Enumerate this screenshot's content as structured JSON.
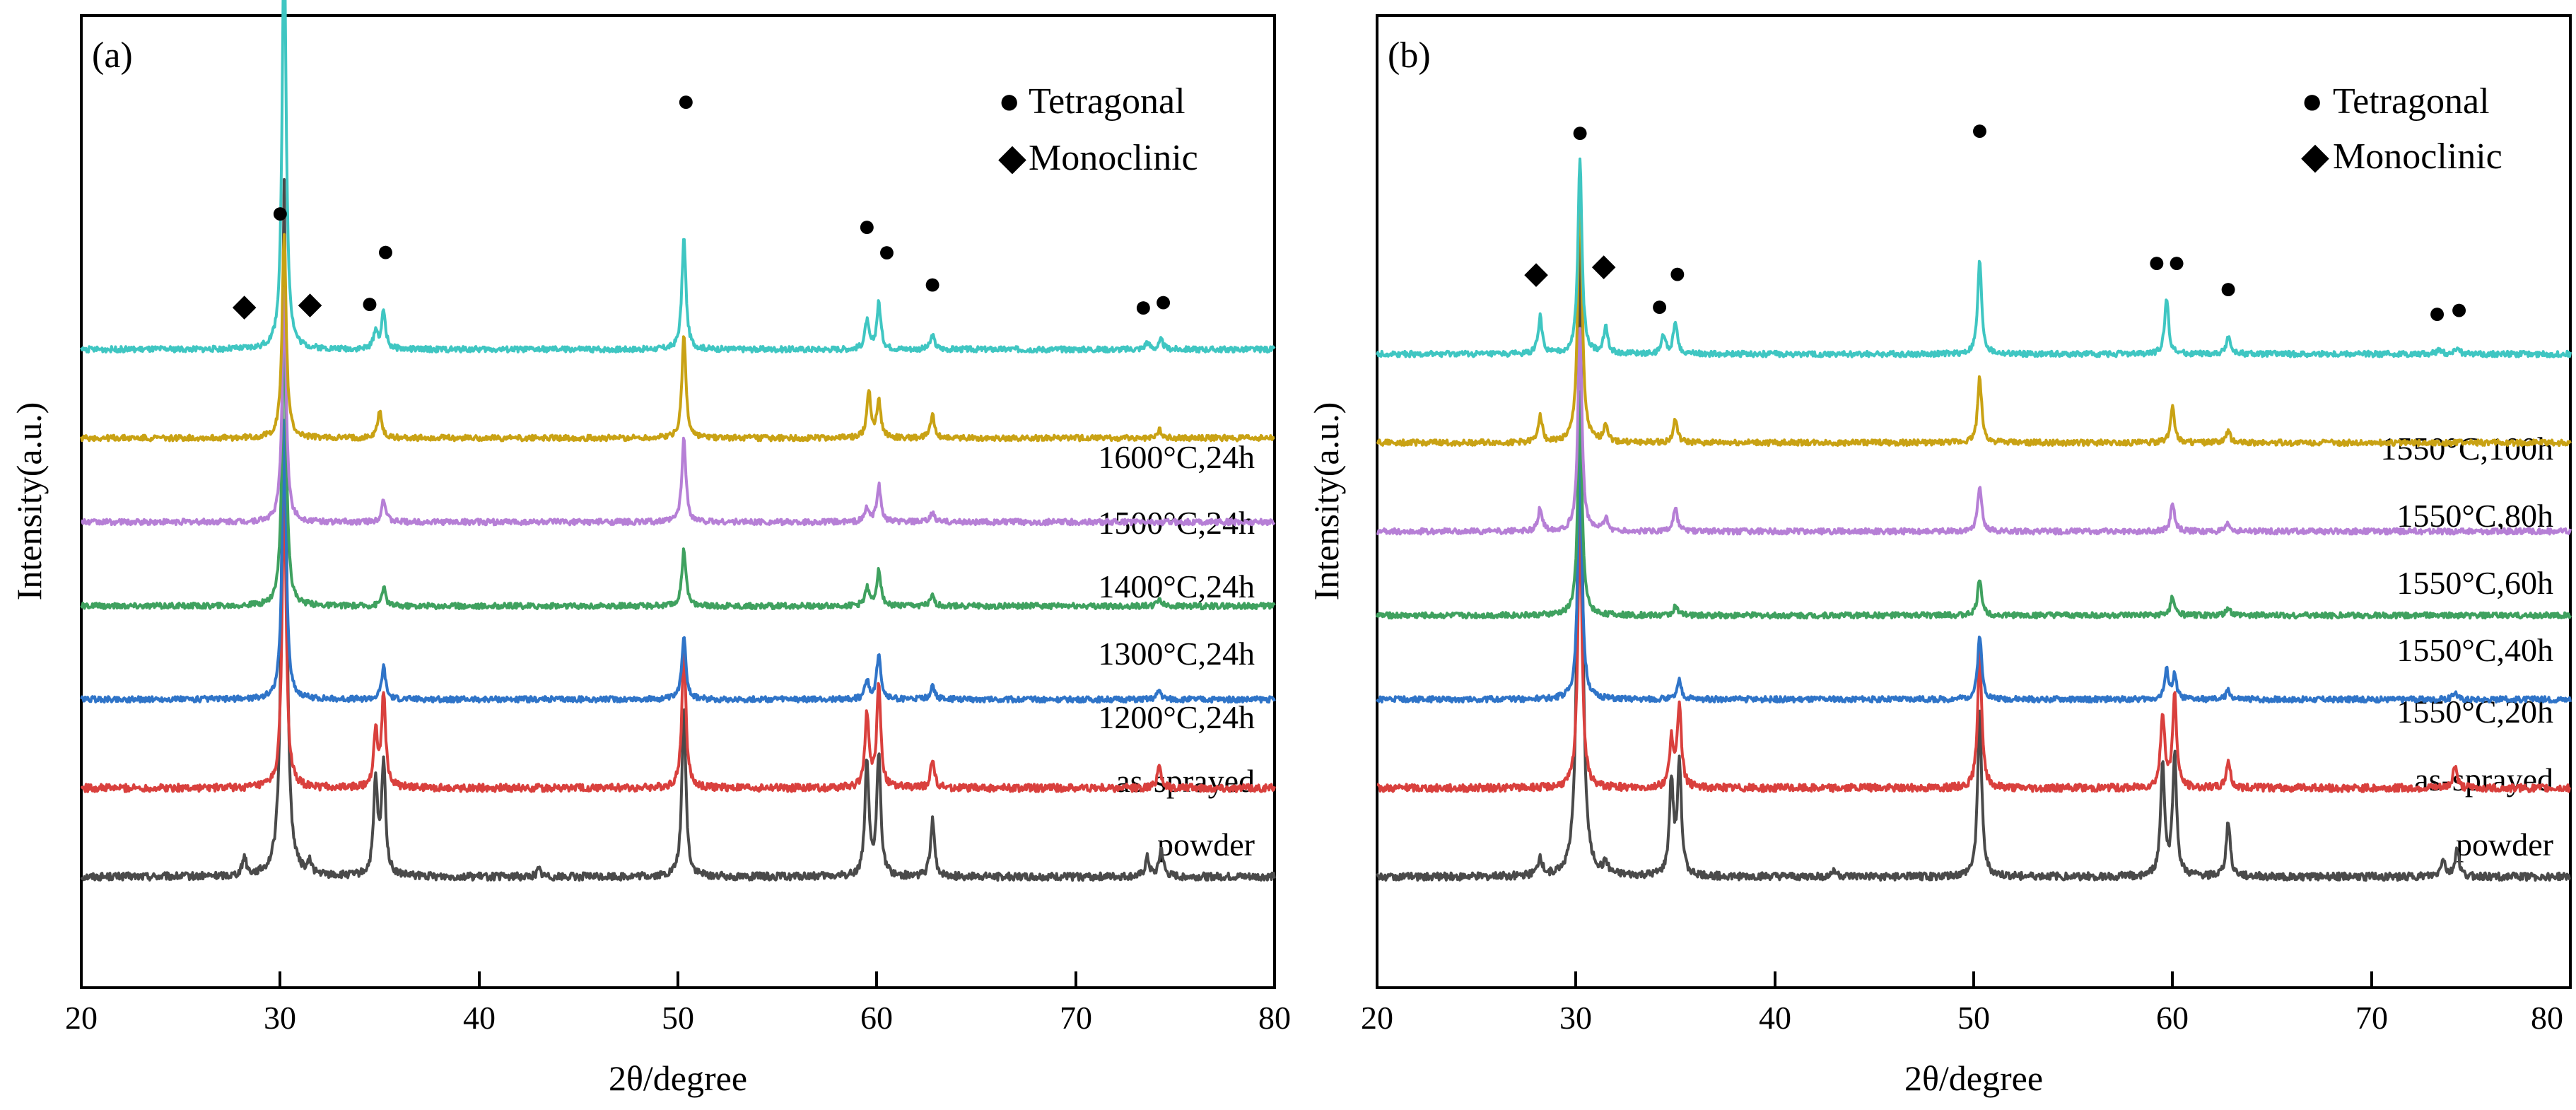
{
  "colors": {
    "powder": "#4a4a4a",
    "as_sprayed": "#d9403d",
    "t1": "#2f74c8",
    "t2": "#3fa15f",
    "t3": "#b67fd6",
    "t4": "#c9a214",
    "t5": "#3fc6c2"
  },
  "chart_data": [
    {
      "type": "line",
      "panel_label": "(a)",
      "xlabel": "2θ/degree",
      "ylabel": "Intensity(a.u.)",
      "xlim": [
        20,
        80
      ],
      "x_ticks": [
        20,
        30,
        40,
        50,
        60,
        70,
        80
      ],
      "x_tick_labels": [
        "20",
        "30",
        "40",
        "50",
        "60",
        "70",
        "80"
      ],
      "y_scale": "relative intensity, traces vertically offset",
      "legend": [
        {
          "marker": "●",
          "label": "Tetragonal"
        },
        {
          "marker": "◆",
          "label": "Monoclinic"
        }
      ],
      "series": [
        {
          "name": "powder",
          "color_key": "powder",
          "offset": 0.0,
          "noise": 0.004,
          "peaks": [
            [
              28.2,
              0.02
            ],
            [
              30.2,
              0.75
            ],
            [
              31.5,
              0.012
            ],
            [
              34.8,
              0.1
            ],
            [
              35.2,
              0.12
            ],
            [
              43.0,
              0.008
            ],
            [
              50.3,
              0.18
            ],
            [
              59.5,
              0.12
            ],
            [
              60.1,
              0.13
            ],
            [
              62.8,
              0.06
            ],
            [
              73.6,
              0.02
            ],
            [
              74.3,
              0.03
            ]
          ]
        },
        {
          "name": "as-sprayed",
          "color_key": "as_sprayed",
          "offset": 0.095,
          "noise": 0.004,
          "peaks": [
            [
              30.2,
              0.33
            ],
            [
              34.8,
              0.06
            ],
            [
              35.2,
              0.1
            ],
            [
              50.3,
              0.15
            ],
            [
              59.5,
              0.08
            ],
            [
              60.1,
              0.11
            ],
            [
              62.8,
              0.03
            ],
            [
              74.2,
              0.025
            ]
          ]
        },
        {
          "name": "1200°C,24h",
          "color_key": "t1",
          "offset": 0.19,
          "noise": 0.003,
          "peaks": [
            [
              30.2,
              0.3
            ],
            [
              35.2,
              0.035
            ],
            [
              50.3,
              0.07
            ],
            [
              59.5,
              0.02
            ],
            [
              60.1,
              0.05
            ],
            [
              62.8,
              0.015
            ],
            [
              74.2,
              0.01
            ]
          ]
        },
        {
          "name": "1300°C,24h",
          "color_key": "t2",
          "offset": 0.29,
          "noise": 0.003,
          "peaks": [
            [
              30.2,
              0.33
            ],
            [
              35.2,
              0.02
            ],
            [
              50.3,
              0.06
            ],
            [
              59.5,
              0.02
            ],
            [
              60.1,
              0.04
            ],
            [
              62.8,
              0.01
            ],
            [
              74.2,
              0.008
            ]
          ]
        },
        {
          "name": "1400°C,24h",
          "color_key": "t3",
          "offset": 0.38,
          "noise": 0.003,
          "peaks": [
            [
              30.2,
              0.25
            ],
            [
              35.2,
              0.025
            ],
            [
              50.3,
              0.09
            ],
            [
              59.5,
              0.015
            ],
            [
              60.1,
              0.04
            ],
            [
              62.8,
              0.01
            ]
          ]
        },
        {
          "name": "1500°C,24h",
          "color_key": "t4",
          "offset": 0.47,
          "noise": 0.003,
          "peaks": [
            [
              30.2,
              0.22
            ],
            [
              35.0,
              0.03
            ],
            [
              50.3,
              0.11
            ],
            [
              59.6,
              0.05
            ],
            [
              60.1,
              0.04
            ],
            [
              62.8,
              0.025
            ],
            [
              74.2,
              0.01
            ]
          ]
        },
        {
          "name": "1600°C,24h",
          "color_key": "t5",
          "offset": 0.565,
          "noise": 0.003,
          "peaks": [
            [
              30.2,
              0.45
            ],
            [
              34.8,
              0.02
            ],
            [
              35.2,
              0.04
            ],
            [
              50.3,
              0.12
            ],
            [
              59.5,
              0.03
            ],
            [
              60.1,
              0.05
            ],
            [
              62.8,
              0.015
            ],
            [
              73.6,
              0.008
            ],
            [
              74.3,
              0.01
            ]
          ]
        }
      ],
      "phase_markers": [
        {
          "symbol": "◆",
          "x": 28.2,
          "above": "1600°C,24h",
          "gap": 0.03
        },
        {
          "symbol": "◆",
          "x": 31.5,
          "above": "1600°C,24h",
          "gap": 0.03
        },
        {
          "symbol": "●",
          "x": 34.5,
          "above": "1600°C,24h",
          "gap": 0.03
        },
        {
          "symbol": "●",
          "x": 35.3,
          "above": "1600°C,24h",
          "gap": 0.065
        },
        {
          "symbol": "●",
          "x": 30.0,
          "above": "powder",
          "gap": 0.0
        },
        {
          "symbol": "●",
          "x": 50.4,
          "above": "1600°C,24h",
          "gap": 0.18
        },
        {
          "symbol": "●",
          "x": 59.5,
          "above": "1600°C,24h",
          "gap": 0.085
        },
        {
          "symbol": "●",
          "x": 60.5,
          "above": "1600°C,24h",
          "gap": 0.085
        },
        {
          "symbol": "●",
          "x": 62.8,
          "above": "1600°C,24h",
          "gap": 0.04
        },
        {
          "symbol": "●",
          "x": 73.4,
          "above": "1600°C,24h",
          "gap": 0.028
        },
        {
          "symbol": "●",
          "x": 74.4,
          "above": "1600°C,24h",
          "gap": 0.03
        }
      ]
    },
    {
      "type": "line",
      "panel_label": "(b)",
      "xlabel": "2θ/degree",
      "ylabel": "Intensity(a.u.)",
      "xlim": [
        20,
        80
      ],
      "x_ticks": [
        20,
        30,
        40,
        50,
        60,
        70,
        80
      ],
      "x_tick_labels": [
        "20",
        "30",
        "40",
        "50",
        "60",
        "70",
        "80"
      ],
      "y_scale": "relative intensity, traces vertically offset",
      "legend": [
        {
          "marker": "●",
          "label": "Tetragonal"
        },
        {
          "marker": "◆",
          "label": "Monoclinic"
        }
      ],
      "series": [
        {
          "name": "powder",
          "color_key": "powder",
          "offset": 0.0,
          "noise": 0.004,
          "peaks": [
            [
              28.2,
              0.02
            ],
            [
              30.2,
              0.75
            ],
            [
              31.5,
              0.012
            ],
            [
              34.8,
              0.1
            ],
            [
              35.2,
              0.12
            ],
            [
              43.0,
              0.008
            ],
            [
              50.3,
              0.18
            ],
            [
              59.5,
              0.12
            ],
            [
              60.1,
              0.13
            ],
            [
              62.8,
              0.06
            ],
            [
              73.6,
              0.02
            ],
            [
              74.3,
              0.03
            ]
          ]
        },
        {
          "name": "as-sprayed",
          "color_key": "as_sprayed",
          "offset": 0.095,
          "noise": 0.004,
          "peaks": [
            [
              30.2,
              0.3
            ],
            [
              34.8,
              0.05
            ],
            [
              35.2,
              0.09
            ],
            [
              50.3,
              0.15
            ],
            [
              59.5,
              0.08
            ],
            [
              60.1,
              0.1
            ],
            [
              62.8,
              0.03
            ],
            [
              74.2,
              0.025
            ]
          ]
        },
        {
          "name": "1550°C,20h",
          "color_key": "t1",
          "offset": 0.19,
          "noise": 0.003,
          "peaks": [
            [
              30.2,
              0.27
            ],
            [
              35.2,
              0.02
            ],
            [
              50.3,
              0.07
            ],
            [
              59.7,
              0.03
            ],
            [
              60.1,
              0.025
            ],
            [
              62.8,
              0.01
            ],
            [
              74.2,
              0.008
            ]
          ]
        },
        {
          "name": "1550°C,40h",
          "color_key": "t2",
          "offset": 0.28,
          "noise": 0.003,
          "peaks": [
            [
              30.2,
              0.24
            ],
            [
              35.0,
              0.01
            ],
            [
              50.3,
              0.04
            ],
            [
              60.0,
              0.02
            ],
            [
              62.8,
              0.008
            ]
          ]
        },
        {
          "name": "1550°C,60h",
          "color_key": "t3",
          "offset": 0.37,
          "noise": 0.003,
          "peaks": [
            [
              28.2,
              0.025
            ],
            [
              30.2,
              0.22
            ],
            [
              31.5,
              0.015
            ],
            [
              35.0,
              0.025
            ],
            [
              50.3,
              0.05
            ],
            [
              60.0,
              0.03
            ],
            [
              62.8,
              0.008
            ]
          ]
        },
        {
          "name": "1550°C,80h",
          "color_key": "t4",
          "offset": 0.465,
          "noise": 0.003,
          "peaks": [
            [
              28.2,
              0.03
            ],
            [
              30.2,
              0.3
            ],
            [
              31.5,
              0.02
            ],
            [
              35.0,
              0.025
            ],
            [
              50.3,
              0.07
            ],
            [
              60.0,
              0.04
            ],
            [
              62.8,
              0.012
            ]
          ]
        },
        {
          "name": "1550°C,100h",
          "color_key": "t5",
          "offset": 0.56,
          "noise": 0.003,
          "peaks": [
            [
              28.2,
              0.04
            ],
            [
              30.2,
              0.21
            ],
            [
              31.5,
              0.03
            ],
            [
              34.4,
              0.02
            ],
            [
              35.0,
              0.035
            ],
            [
              50.3,
              0.1
            ],
            [
              59.7,
              0.06
            ],
            [
              62.8,
              0.02
            ],
            [
              73.4,
              0.006
            ],
            [
              74.3,
              0.008
            ]
          ]
        }
      ],
      "phase_markers": [
        {
          "symbol": "◆",
          "x": 28.0,
          "above": "1550°C,100h",
          "gap": 0.06
        },
        {
          "symbol": "◆",
          "x": 31.4,
          "above": "1550°C,100h",
          "gap": 0.06
        },
        {
          "symbol": "●",
          "x": 34.2,
          "above": "1550°C,100h",
          "gap": 0.03
        },
        {
          "symbol": "●",
          "x": 35.1,
          "above": "1550°C,100h",
          "gap": 0.05
        },
        {
          "symbol": "●",
          "x": 30.2,
          "above": "powder",
          "gap": 0.0
        },
        {
          "symbol": "●",
          "x": 50.3,
          "above": "1550°C,100h",
          "gap": 0.125
        },
        {
          "symbol": "●",
          "x": 59.2,
          "above": "1550°C,100h",
          "gap": 0.08
        },
        {
          "symbol": "●",
          "x": 60.2,
          "above": "1550°C,100h",
          "gap": 0.08
        },
        {
          "symbol": "●",
          "x": 62.8,
          "above": "1550°C,100h",
          "gap": 0.035
        },
        {
          "symbol": "●",
          "x": 73.3,
          "above": "1550°C,100h",
          "gap": 0.025
        },
        {
          "symbol": "●",
          "x": 74.4,
          "above": "1550°C,100h",
          "gap": 0.028
        }
      ]
    }
  ]
}
